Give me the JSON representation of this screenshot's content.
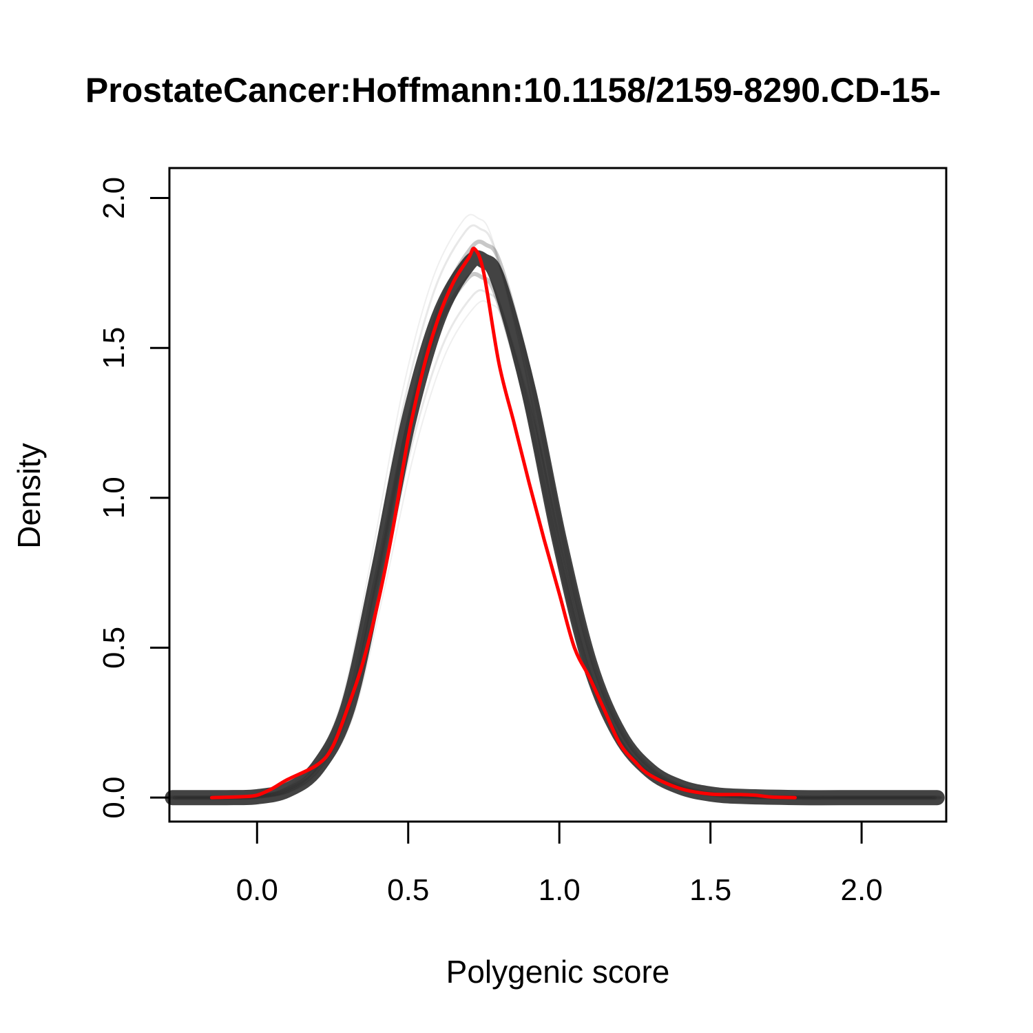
{
  "chart_data": {
    "type": "line",
    "title": "ProstateCancer:Hoffmann:10.1158/2159-8290.CD-15-",
    "xlabel": "Polygenic score",
    "ylabel": "Density",
    "xlim": [
      -0.29,
      2.28
    ],
    "ylim": [
      -0.08,
      2.1
    ],
    "x_ticks": [
      "0.0",
      "0.5",
      "1.0",
      "1.5",
      "2.0"
    ],
    "y_ticks": [
      "0.0",
      "0.5",
      "1.0",
      "1.5",
      "2.0"
    ],
    "grid": false,
    "legend": "none",
    "series": [
      {
        "color": "#222222",
        "style": "band of many overlapping semi-transparent density curves",
        "x": [
          -0.28,
          -0.1,
          0.0,
          0.1,
          0.2,
          0.3,
          0.4,
          0.5,
          0.6,
          0.7,
          0.75,
          0.8,
          0.9,
          1.0,
          1.1,
          1.2,
          1.3,
          1.4,
          1.5,
          1.6,
          1.8,
          2.0,
          2.25
        ],
        "y": [
          0.0,
          0.0,
          0.003,
          0.025,
          0.1,
          0.3,
          0.75,
          1.25,
          1.6,
          1.78,
          1.79,
          1.72,
          1.35,
          0.86,
          0.45,
          0.21,
          0.09,
          0.035,
          0.012,
          0.004,
          0.0,
          0.0,
          0.0
        ]
      },
      {
        "color": "#ff0000",
        "style": "observed density",
        "x": [
          -0.15,
          -0.05,
          0.0,
          0.05,
          0.1,
          0.2,
          0.25,
          0.3,
          0.35,
          0.4,
          0.45,
          0.5,
          0.55,
          0.6,
          0.65,
          0.7,
          0.72,
          0.75,
          0.8,
          0.85,
          0.9,
          0.95,
          1.0,
          1.05,
          1.1,
          1.15,
          1.2,
          1.25,
          1.3,
          1.4,
          1.5,
          1.6,
          1.65,
          1.7,
          1.78
        ],
        "y": [
          0.0,
          0.003,
          0.008,
          0.03,
          0.06,
          0.11,
          0.17,
          0.3,
          0.45,
          0.65,
          0.9,
          1.2,
          1.43,
          1.6,
          1.72,
          1.8,
          1.83,
          1.75,
          1.45,
          1.25,
          1.05,
          0.86,
          0.68,
          0.5,
          0.4,
          0.29,
          0.18,
          0.12,
          0.075,
          0.03,
          0.012,
          0.01,
          0.008,
          0.002,
          0.0
        ]
      }
    ]
  }
}
